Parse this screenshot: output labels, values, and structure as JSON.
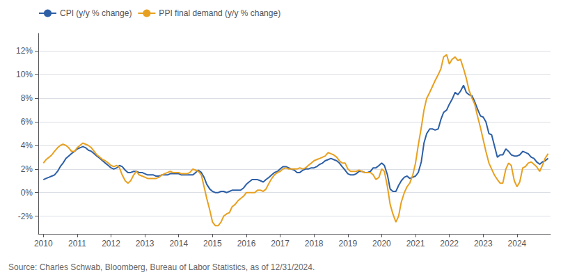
{
  "chart_data": {
    "type": "line",
    "annotations": [
      "Source: Charles Schwab, Bloomberg, Bureau of Labor Statistics, as of 12/31/2024."
    ],
    "x": [
      2010.0,
      2010.08,
      2010.17,
      2010.25,
      2010.33,
      2010.42,
      2010.5,
      2010.58,
      2010.67,
      2010.75,
      2010.83,
      2010.92,
      2011.0,
      2011.08,
      2011.17,
      2011.25,
      2011.33,
      2011.42,
      2011.5,
      2011.58,
      2011.67,
      2011.75,
      2011.83,
      2011.92,
      2012.0,
      2012.08,
      2012.17,
      2012.25,
      2012.33,
      2012.42,
      2012.5,
      2012.58,
      2012.67,
      2012.75,
      2012.83,
      2012.92,
      2013.0,
      2013.08,
      2013.17,
      2013.25,
      2013.33,
      2013.42,
      2013.5,
      2013.58,
      2013.67,
      2013.75,
      2013.83,
      2013.92,
      2014.0,
      2014.08,
      2014.17,
      2014.25,
      2014.33,
      2014.42,
      2014.5,
      2014.58,
      2014.67,
      2014.75,
      2014.83,
      2014.92,
      2015.0,
      2015.08,
      2015.17,
      2015.25,
      2015.33,
      2015.42,
      2015.5,
      2015.58,
      2015.67,
      2015.75,
      2015.83,
      2015.92,
      2016.0,
      2016.08,
      2016.17,
      2016.25,
      2016.33,
      2016.42,
      2016.5,
      2016.58,
      2016.67,
      2016.75,
      2016.83,
      2016.92,
      2017.0,
      2017.08,
      2017.17,
      2017.25,
      2017.33,
      2017.42,
      2017.5,
      2017.58,
      2017.67,
      2017.75,
      2017.83,
      2017.92,
      2018.0,
      2018.08,
      2018.17,
      2018.25,
      2018.33,
      2018.42,
      2018.5,
      2018.58,
      2018.67,
      2018.75,
      2018.83,
      2018.92,
      2019.0,
      2019.08,
      2019.17,
      2019.25,
      2019.33,
      2019.42,
      2019.5,
      2019.58,
      2019.67,
      2019.75,
      2019.83,
      2019.92,
      2020.0,
      2020.08,
      2020.17,
      2020.25,
      2020.33,
      2020.42,
      2020.5,
      2020.58,
      2020.67,
      2020.75,
      2020.83,
      2020.92,
      2021.0,
      2021.08,
      2021.17,
      2021.25,
      2021.33,
      2021.42,
      2021.5,
      2021.58,
      2021.67,
      2021.75,
      2021.83,
      2021.92,
      2022.0,
      2022.08,
      2022.17,
      2022.25,
      2022.33,
      2022.42,
      2022.5,
      2022.58,
      2022.67,
      2022.75,
      2022.83,
      2022.92,
      2023.0,
      2023.08,
      2023.17,
      2023.25,
      2023.33,
      2023.42,
      2023.5,
      2023.58,
      2023.67,
      2023.75,
      2023.83,
      2023.92,
      2024.0,
      2024.08,
      2024.17,
      2024.25,
      2024.33,
      2024.42,
      2024.5,
      2024.58,
      2024.67,
      2024.75,
      2024.83,
      2024.92
    ],
    "series": [
      {
        "name": "CPI (y/y % change)",
        "color": "#2d5fa6",
        "values": [
          1.1,
          1.2,
          1.3,
          1.4,
          1.5,
          1.8,
          2.2,
          2.5,
          2.9,
          3.1,
          3.3,
          3.5,
          3.7,
          3.8,
          3.9,
          3.8,
          3.6,
          3.5,
          3.3,
          3.1,
          2.9,
          2.7,
          2.5,
          2.3,
          2.1,
          2.0,
          2.1,
          2.3,
          2.2,
          1.9,
          1.7,
          1.7,
          1.8,
          1.8,
          1.7,
          1.7,
          1.6,
          1.5,
          1.5,
          1.5,
          1.4,
          1.4,
          1.5,
          1.5,
          1.5,
          1.6,
          1.6,
          1.6,
          1.6,
          1.5,
          1.5,
          1.5,
          1.5,
          1.5,
          1.7,
          1.9,
          1.7,
          1.3,
          0.7,
          0.3,
          0.1,
          0.0,
          0.0,
          0.1,
          0.1,
          0.0,
          0.1,
          0.2,
          0.2,
          0.2,
          0.2,
          0.4,
          0.7,
          0.9,
          1.1,
          1.1,
          1.1,
          1.0,
          0.9,
          1.1,
          1.3,
          1.5,
          1.7,
          1.8,
          2.0,
          2.2,
          2.2,
          2.1,
          2.0,
          1.9,
          1.7,
          1.7,
          1.9,
          2.0,
          2.0,
          2.1,
          2.1,
          2.2,
          2.4,
          2.5,
          2.7,
          2.8,
          2.9,
          2.8,
          2.7,
          2.5,
          2.2,
          1.9,
          1.6,
          1.5,
          1.5,
          1.6,
          1.8,
          1.8,
          1.7,
          1.7,
          1.8,
          2.1,
          2.1,
          2.3,
          2.5,
          2.3,
          1.5,
          0.3,
          0.1,
          0.1,
          0.6,
          1.0,
          1.3,
          1.4,
          1.2,
          1.3,
          1.4,
          1.7,
          2.6,
          4.2,
          5.0,
          5.4,
          5.4,
          5.3,
          5.4,
          6.2,
          6.8,
          7.0,
          7.5,
          7.9,
          8.5,
          8.3,
          8.6,
          9.1,
          8.5,
          8.3,
          8.2,
          7.7,
          7.1,
          6.5,
          6.4,
          6.0,
          5.0,
          4.9,
          4.0,
          3.0,
          3.2,
          3.2,
          3.7,
          3.5,
          3.2,
          3.1,
          3.1,
          3.2,
          3.5,
          3.4,
          3.3,
          3.0,
          2.9,
          2.6,
          2.4,
          2.6,
          2.7,
          2.9
        ]
      },
      {
        "name": "PPI final demand (y/y % change)",
        "color": "#e8a020",
        "values": [
          2.5,
          2.8,
          3.0,
          3.2,
          3.5,
          3.8,
          4.0,
          4.1,
          4.0,
          3.8,
          3.5,
          3.5,
          3.8,
          4.0,
          4.2,
          4.1,
          4.0,
          3.8,
          3.5,
          3.2,
          3.0,
          2.8,
          2.7,
          2.5,
          2.3,
          2.2,
          2.3,
          2.1,
          1.5,
          1.0,
          0.8,
          1.0,
          1.5,
          1.8,
          1.5,
          1.4,
          1.3,
          1.2,
          1.2,
          1.2,
          1.2,
          1.3,
          1.5,
          1.6,
          1.7,
          1.8,
          1.7,
          1.7,
          1.7,
          1.6,
          1.6,
          1.6,
          1.7,
          2.0,
          1.9,
          1.8,
          1.5,
          0.5,
          -0.5,
          -1.5,
          -2.5,
          -2.8,
          -2.8,
          -2.5,
          -2.0,
          -1.8,
          -1.7,
          -1.2,
          -1.0,
          -0.7,
          -0.5,
          -0.3,
          0.0,
          0.0,
          0.0,
          0.0,
          0.2,
          0.2,
          0.1,
          0.3,
          0.8,
          1.2,
          1.5,
          1.7,
          1.8,
          2.0,
          2.1,
          2.0,
          2.0,
          2.0,
          2.0,
          2.1,
          2.0,
          2.1,
          2.3,
          2.5,
          2.7,
          2.8,
          2.9,
          3.0,
          3.1,
          3.4,
          3.3,
          3.2,
          3.0,
          2.7,
          2.5,
          2.5,
          2.0,
          1.8,
          1.8,
          1.8,
          1.9,
          1.8,
          1.7,
          1.7,
          1.7,
          1.5,
          1.1,
          1.3,
          2.0,
          1.8,
          0.5,
          -1.0,
          -1.8,
          -2.5,
          -2.0,
          -0.8,
          0.0,
          0.5,
          0.8,
          1.5,
          2.5,
          4.0,
          5.5,
          7.0,
          8.0,
          8.5,
          9.0,
          9.5,
          10.0,
          10.5,
          11.5,
          11.7,
          10.9,
          11.3,
          11.5,
          11.2,
          11.3,
          10.5,
          9.7,
          8.7,
          8.0,
          7.5,
          6.5,
          5.5,
          4.5,
          3.5,
          2.5,
          2.0,
          1.5,
          1.1,
          0.8,
          0.8,
          2.0,
          2.5,
          2.3,
          1.0,
          0.5,
          0.9,
          2.1,
          2.2,
          2.5,
          2.6,
          2.4,
          2.2,
          1.8,
          2.3,
          2.9,
          3.3
        ]
      }
    ],
    "xlim": [
      2009.85,
      2024.99
    ],
    "xticks": [
      2010,
      2011,
      2012,
      2013,
      2014,
      2015,
      2016,
      2017,
      2018,
      2019,
      2020,
      2021,
      2022,
      2023,
      2024
    ],
    "ylim": [
      -3.5,
      13.5
    ],
    "yticks": [
      {
        "value": -2,
        "label": "-2%"
      },
      {
        "value": 0,
        "label": "0%"
      },
      {
        "value": 2,
        "label": "2%"
      },
      {
        "value": 4,
        "label": "4%"
      },
      {
        "value": 6,
        "label": "6%"
      },
      {
        "value": 8,
        "label": "8%"
      },
      {
        "value": 10,
        "label": "10%"
      },
      {
        "value": 12,
        "label": "12%"
      }
    ],
    "grid": true,
    "legend": "upper left"
  }
}
